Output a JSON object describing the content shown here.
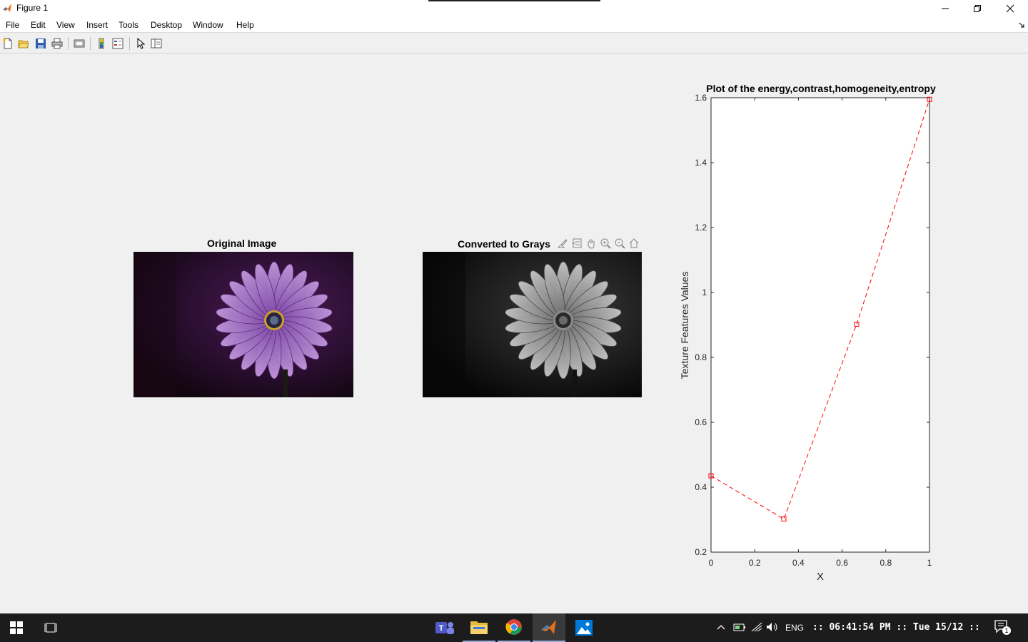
{
  "window": {
    "title": "Figure 1",
    "minimize_icon": "minimize-icon",
    "restore_icon": "restore-icon",
    "close_icon": "close-icon"
  },
  "menu": {
    "items": [
      "File",
      "Edit",
      "View",
      "Insert",
      "Tools",
      "Desktop",
      "Window",
      "Help"
    ]
  },
  "toolbar": {
    "icons": [
      "new-figure-icon",
      "open-file-icon",
      "save-icon",
      "print-icon",
      "link-plot-icon",
      "colorbar-icon",
      "legend-icon",
      "edit-plot-icon",
      "property-inspector-icon"
    ]
  },
  "axes_toolbar": {
    "icons": [
      "brush-icon",
      "data-tips-icon",
      "pan-icon",
      "zoom-in-icon",
      "zoom-out-icon",
      "home-icon"
    ]
  },
  "images": {
    "original_title": "Original Image",
    "gray_title": "Converted to Grays"
  },
  "chart_data": {
    "type": "line",
    "title": "Plot of the energy,contrast,homogeneity,entropy",
    "xlabel": "X",
    "ylabel": "Texture Features Values",
    "x": [
      0,
      0.3333,
      0.6667,
      1
    ],
    "series": [
      {
        "values": [
          0.435,
          0.302,
          0.902,
          1.595
        ],
        "color": "#ff0000",
        "line_style": "dashed",
        "marker": "square"
      }
    ],
    "xlim": [
      0,
      1
    ],
    "ylim": [
      0.2,
      1.6
    ],
    "xticks": [
      "0",
      "0.2",
      "0.4",
      "0.6",
      "0.8",
      "1"
    ],
    "xtick_values": [
      0,
      0.2,
      0.4,
      0.6,
      0.8,
      1
    ],
    "yticks": [
      "0.2",
      "0.4",
      "0.6",
      "0.8",
      "1",
      "1.2",
      "1.4",
      "1.6"
    ],
    "ytick_values": [
      0.2,
      0.4,
      0.6,
      0.8,
      1,
      1.2,
      1.4,
      1.6
    ],
    "grid": false
  },
  "taskbar": {
    "apps": [
      "teams-icon",
      "file-explorer-icon",
      "chrome-icon",
      "matlab-icon",
      "photos-icon"
    ],
    "lang": "ENG",
    "clock": ":: 06:41:54 PM :: Tue 15/12 ::",
    "notification_count": "1"
  }
}
